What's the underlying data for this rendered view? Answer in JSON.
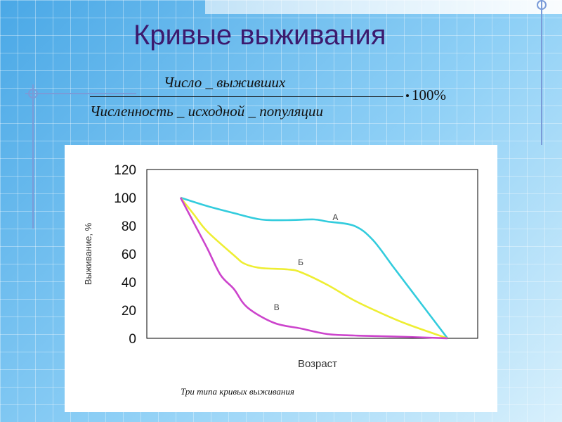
{
  "slide": {
    "title": "Кривые выживания"
  },
  "formula": {
    "numerator": "Число _ выживших",
    "denominator": "Численность _ исходной _ популяции",
    "multiplier": "100%"
  },
  "figure": {
    "caption": "Три типа кривых выживания"
  },
  "chart_data": {
    "type": "line",
    "title": "",
    "xlabel": "Возраст",
    "ylabel": "Выживание, %",
    "ylim": [
      0,
      120
    ],
    "yticks": [
      "0",
      "20",
      "40",
      "60",
      "80",
      "100",
      "120"
    ],
    "xlim": [
      0,
      100
    ],
    "grid": false,
    "legend": "none",
    "series": [
      {
        "name": "А",
        "color": "#33ccdd",
        "x": [
          0,
          10,
          20,
          30,
          40,
          50,
          55,
          65,
          72,
          80,
          90,
          100
        ],
        "y": [
          100,
          94,
          89,
          84.5,
          84,
          84.5,
          83,
          80,
          70,
          50,
          25,
          0
        ]
      },
      {
        "name": "Б",
        "color": "#eeee33",
        "x": [
          0,
          5,
          10,
          20,
          24,
          30,
          40,
          45,
          55,
          65,
          75,
          85,
          100
        ],
        "y": [
          100,
          88,
          76,
          59,
          53,
          50,
          49,
          47,
          38,
          27,
          18,
          10,
          0
        ]
      },
      {
        "name": "В",
        "color": "#cc44cc",
        "x": [
          0,
          5,
          10,
          15,
          20,
          25,
          35,
          45,
          55,
          65,
          75,
          85,
          100
        ],
        "y": [
          100,
          82,
          64,
          45,
          35,
          22,
          11,
          7,
          3,
          2,
          1.5,
          1,
          0
        ]
      }
    ]
  }
}
